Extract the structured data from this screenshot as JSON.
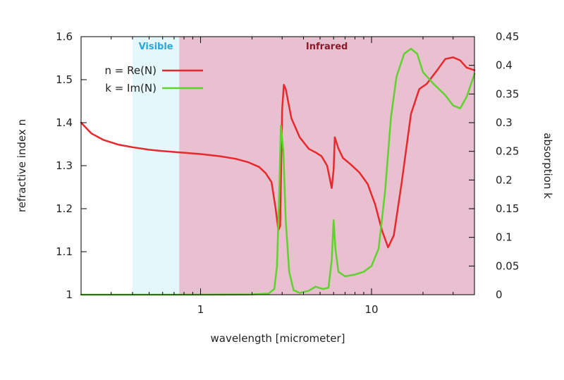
{
  "chart_data": {
    "type": "line",
    "title": "",
    "xlabel": "wavelength [micrometer]",
    "ylabel": "refractive index n",
    "y2label": "absorption k",
    "xscale": "log",
    "xlim": [
      0.2,
      40
    ],
    "ylim": [
      1.0,
      1.6
    ],
    "y2lim": [
      0.0,
      0.45
    ],
    "grid": false,
    "legend_position": "top-left",
    "x_ticks": [
      1,
      10
    ],
    "x_tick_labels": [
      "1",
      "10"
    ],
    "y_ticks": [
      1.0,
      1.1,
      1.2,
      1.3,
      1.4,
      1.5,
      1.6
    ],
    "y_tick_labels": [
      "1",
      "1.1",
      "1.2",
      "1.3",
      "1.4",
      "1.5",
      "1.6"
    ],
    "y2_ticks": [
      0,
      0.05,
      0.1,
      0.15,
      0.2,
      0.25,
      0.3,
      0.35,
      0.4,
      0.45
    ],
    "y2_tick_labels": [
      "0",
      "0.05",
      "0.1",
      "0.15",
      "0.2",
      "0.25",
      "0.3",
      "0.35",
      "0.4",
      "0.45"
    ],
    "regions": [
      {
        "name": "Visible",
        "label": "Visible",
        "from": 0.4,
        "to": 0.75,
        "color": "#e4f7fb",
        "text_color": "#2aa7dd"
      },
      {
        "name": "Infrared",
        "label": "Infrared",
        "from": 0.75,
        "to": 40,
        "color": "#e8c0cf",
        "text_color": "#8b1a2b"
      }
    ],
    "series": [
      {
        "name": "n = Re(N)",
        "axis": "left",
        "color": "#e8282d",
        "points": [
          [
            0.2,
            1.4
          ],
          [
            0.23,
            1.375
          ],
          [
            0.27,
            1.36
          ],
          [
            0.33,
            1.349
          ],
          [
            0.4,
            1.343
          ],
          [
            0.5,
            1.337
          ],
          [
            0.6,
            1.334
          ],
          [
            0.75,
            1.331
          ],
          [
            1.0,
            1.327
          ],
          [
            1.3,
            1.322
          ],
          [
            1.6,
            1.316
          ],
          [
            1.9,
            1.308
          ],
          [
            2.2,
            1.297
          ],
          [
            2.4,
            1.283
          ],
          [
            2.6,
            1.262
          ],
          [
            2.75,
            1.2
          ],
          [
            2.85,
            1.15
          ],
          [
            2.92,
            1.16
          ],
          [
            3.0,
            1.43
          ],
          [
            3.07,
            1.488
          ],
          [
            3.15,
            1.478
          ],
          [
            3.4,
            1.41
          ],
          [
            3.8,
            1.366
          ],
          [
            4.3,
            1.339
          ],
          [
            4.7,
            1.331
          ],
          [
            5.1,
            1.322
          ],
          [
            5.5,
            1.3
          ],
          [
            5.85,
            1.248
          ],
          [
            6.0,
            1.29
          ],
          [
            6.1,
            1.366
          ],
          [
            6.4,
            1.34
          ],
          [
            6.8,
            1.318
          ],
          [
            7.5,
            1.304
          ],
          [
            8.5,
            1.284
          ],
          [
            9.5,
            1.257
          ],
          [
            10.5,
            1.21
          ],
          [
            11.5,
            1.15
          ],
          [
            12.5,
            1.11
          ],
          [
            13.5,
            1.138
          ],
          [
            15.0,
            1.26
          ],
          [
            17.0,
            1.42
          ],
          [
            19.0,
            1.478
          ],
          [
            21.0,
            1.49
          ],
          [
            24.0,
            1.52
          ],
          [
            27.0,
            1.548
          ],
          [
            30.0,
            1.552
          ],
          [
            33.0,
            1.545
          ],
          [
            36.0,
            1.528
          ],
          [
            40.0,
            1.522
          ]
        ]
      },
      {
        "name": "k = Im(N)",
        "axis": "right",
        "color": "#5fd22e",
        "points": [
          [
            0.2,
            0.0
          ],
          [
            1.0,
            0.0
          ],
          [
            2.0,
            0.0005
          ],
          [
            2.5,
            0.002
          ],
          [
            2.7,
            0.01
          ],
          [
            2.8,
            0.05
          ],
          [
            2.88,
            0.17
          ],
          [
            2.95,
            0.295
          ],
          [
            3.05,
            0.25
          ],
          [
            3.15,
            0.13
          ],
          [
            3.3,
            0.04
          ],
          [
            3.5,
            0.008
          ],
          [
            3.8,
            0.003
          ],
          [
            4.3,
            0.007
          ],
          [
            4.7,
            0.014
          ],
          [
            5.2,
            0.01
          ],
          [
            5.6,
            0.012
          ],
          [
            5.85,
            0.06
          ],
          [
            6.0,
            0.13
          ],
          [
            6.15,
            0.08
          ],
          [
            6.4,
            0.04
          ],
          [
            7.0,
            0.032
          ],
          [
            8.0,
            0.035
          ],
          [
            9.0,
            0.04
          ],
          [
            10.0,
            0.05
          ],
          [
            11.0,
            0.08
          ],
          [
            12.0,
            0.18
          ],
          [
            13.0,
            0.31
          ],
          [
            14.0,
            0.38
          ],
          [
            15.5,
            0.42
          ],
          [
            17.0,
            0.429
          ],
          [
            18.5,
            0.42
          ],
          [
            20.0,
            0.388
          ],
          [
            23.0,
            0.368
          ],
          [
            27.0,
            0.348
          ],
          [
            30.0,
            0.33
          ],
          [
            33.0,
            0.325
          ],
          [
            36.0,
            0.345
          ],
          [
            40.0,
            0.385
          ]
        ]
      }
    ]
  }
}
